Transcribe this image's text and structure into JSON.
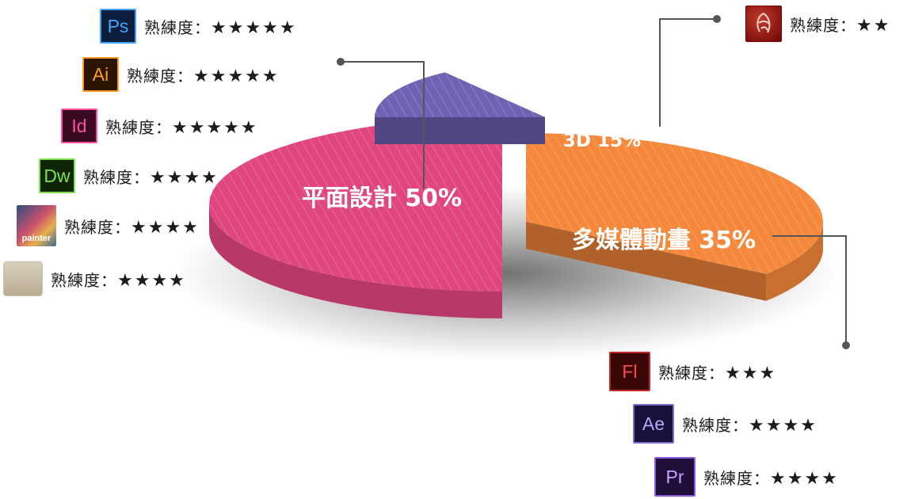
{
  "chart_data": {
    "type": "pie",
    "slices": [
      {
        "label": "平面設計 50%",
        "value": 50,
        "color": "#e0457f"
      },
      {
        "label": "多媒體動畫 35%",
        "value": 35,
        "color": "#f5883a"
      },
      {
        "label": "3D 15%",
        "value": 15,
        "color": "#6e62b4"
      }
    ]
  },
  "skills": [
    {
      "icon": "Ps",
      "icon_name": "photoshop-icon",
      "label": "熟練度：",
      "stars": "★★★★★"
    },
    {
      "icon": "Ai",
      "icon_name": "illustrator-icon",
      "label": "熟練度：",
      "stars": "★★★★★"
    },
    {
      "icon": "Id",
      "icon_name": "indesign-icon",
      "label": "熟練度：",
      "stars": "★★★★★"
    },
    {
      "icon": "Dw",
      "icon_name": "dreamweaver-icon",
      "label": "熟練度：",
      "stars": "★★★★"
    },
    {
      "icon": "painter",
      "icon_name": "painter-icon",
      "label": "熟練度：",
      "stars": "★★★★"
    },
    {
      "icon": "",
      "icon_name": "beige-app-icon",
      "label": "熟練度：",
      "stars": "★★★★"
    },
    {
      "icon": "",
      "icon_name": "maya-icon",
      "label": "熟練度：",
      "stars": "★★"
    },
    {
      "icon": "Fl",
      "icon_name": "flash-icon",
      "label": "熟練度：",
      "stars": "★★★"
    },
    {
      "icon": "Ae",
      "icon_name": "after-effects-icon",
      "label": "熟練度：",
      "stars": "★★★★"
    },
    {
      "icon": "Pr",
      "icon_name": "premiere-icon",
      "label": "熟練度：",
      "stars": "★★★★"
    }
  ]
}
